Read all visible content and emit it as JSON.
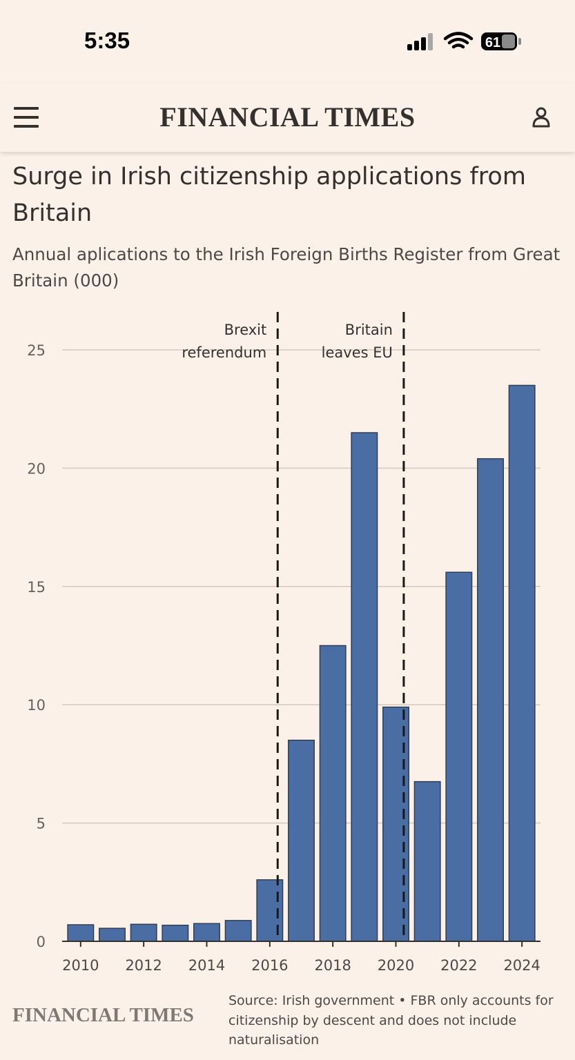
{
  "status_bar": {
    "time": "5:35",
    "battery": "61"
  },
  "header": {
    "brand": "FINANCIAL TIMES"
  },
  "article": {
    "title": "Surge in Irish citizenship applications from Britain",
    "subtitle": "Annual aplications to the Irish Foreign Births Register from Great Britain (000)"
  },
  "footer": {
    "logo": "FINANCIAL TIMES",
    "source": "Source: Irish government • FBR only accounts for citizenship by descent and does not include naturalisation"
  },
  "colors": {
    "bar": "#4a6da3",
    "bar_edge": "#2f3e55",
    "background": "#fcf1e9",
    "grid": "#d2c8c0"
  },
  "chart_data": {
    "type": "bar",
    "x": [
      2010,
      2011,
      2012,
      2013,
      2014,
      2015,
      2016,
      2017,
      2018,
      2019,
      2020,
      2021,
      2022,
      2023,
      2024
    ],
    "values": [
      0.7,
      0.55,
      0.72,
      0.68,
      0.75,
      0.88,
      2.6,
      8.5,
      12.5,
      21.5,
      9.9,
      6.75,
      15.6,
      20.4,
      23.5
    ],
    "x_tick_labels": [
      "2010",
      "2012",
      "2014",
      "2016",
      "2018",
      "2020",
      "2022",
      "2024"
    ],
    "y_ticks": [
      0,
      5,
      10,
      15,
      20,
      25
    ],
    "ylim": [
      0,
      25
    ],
    "grid": true,
    "annotations": [
      {
        "x": 2016.25,
        "lines": [
          "Brexit",
          "referendum"
        ]
      },
      {
        "x": 2020.25,
        "lines": [
          "Britain",
          "leaves EU"
        ]
      }
    ]
  }
}
